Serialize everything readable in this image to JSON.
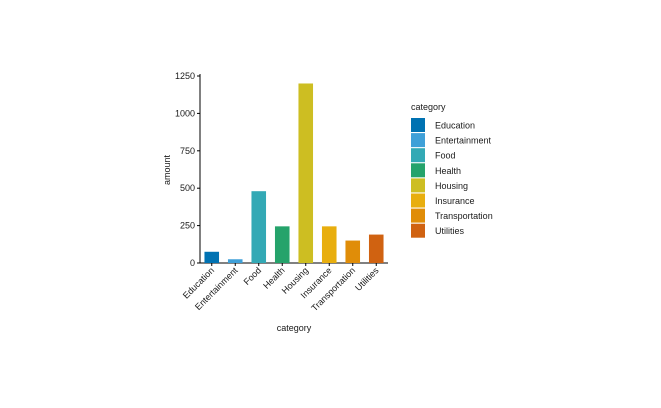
{
  "chart_data": {
    "type": "bar",
    "categories": [
      "Education",
      "Entertainment",
      "Food",
      "Health",
      "Housing",
      "Insurance",
      "Transportation",
      "Utilities"
    ],
    "values": [
      75,
      25,
      480,
      245,
      1200,
      245,
      150,
      190
    ],
    "colors": [
      "#0072B2",
      "#3FA0D8",
      "#33A9B5",
      "#25A36B",
      "#CDBE22",
      "#E8AE0E",
      "#E08D08",
      "#D06211"
    ],
    "xlabel": "category",
    "ylabel": "amount",
    "ylim": [
      0,
      1250
    ],
    "yticks": [
      0,
      250,
      500,
      750,
      1000,
      1250
    ],
    "legend": {
      "title": "category",
      "position": "right"
    },
    "grid": false
  }
}
